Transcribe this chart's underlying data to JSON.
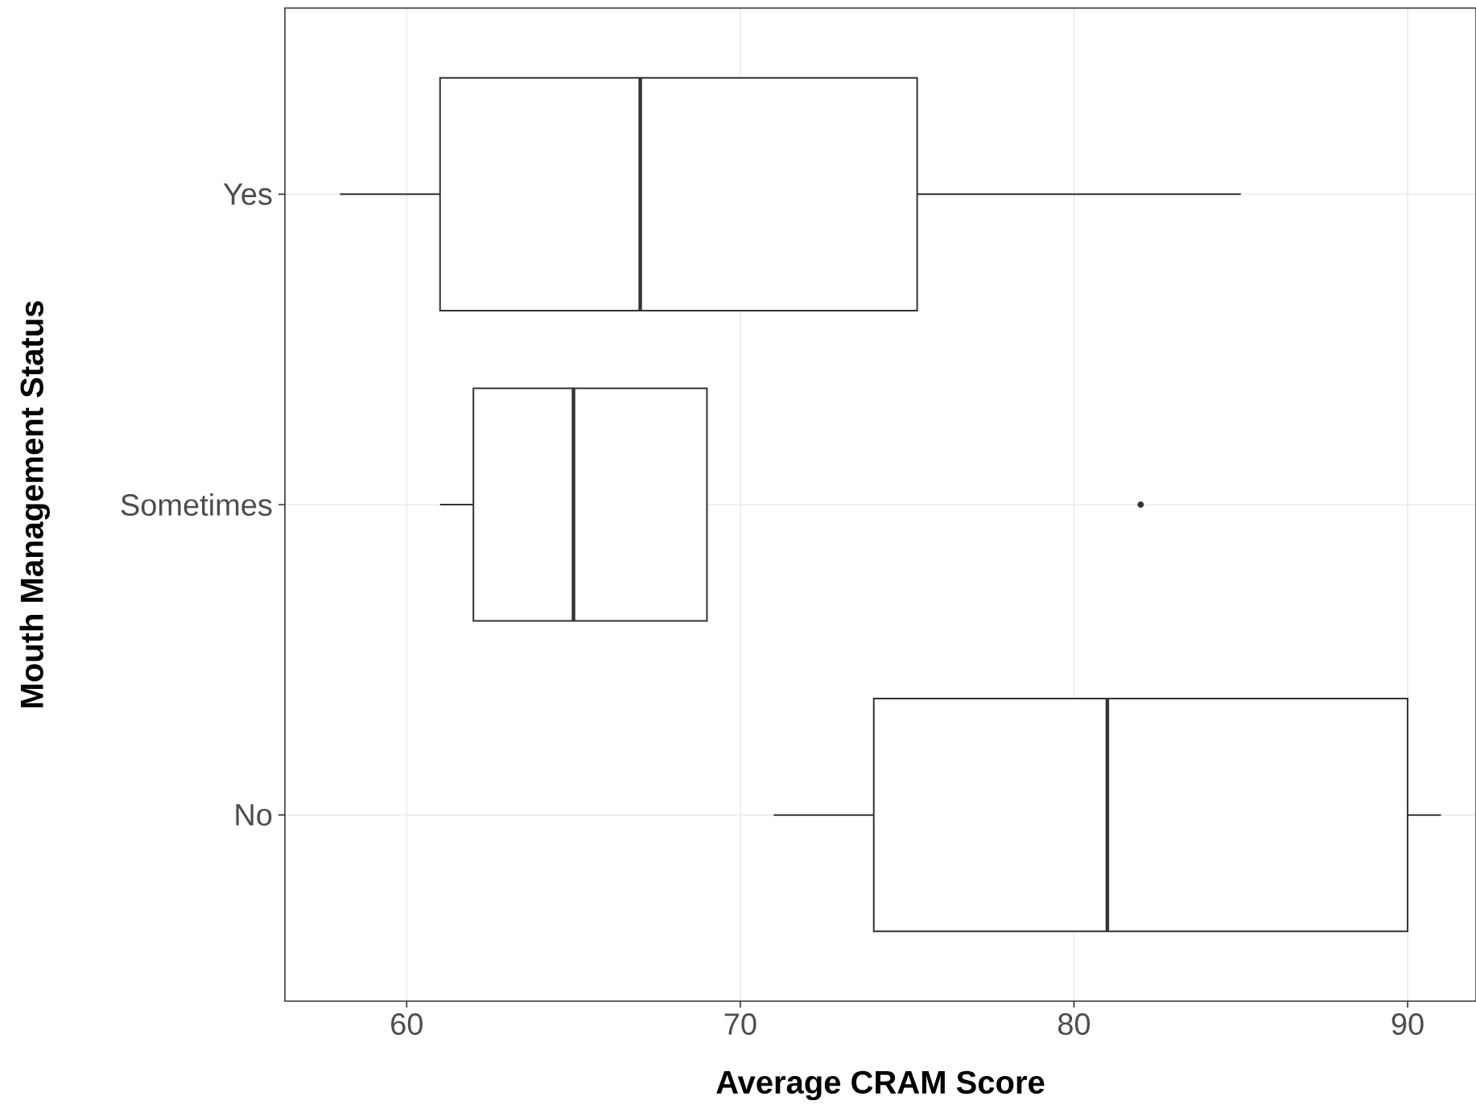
{
  "chart_data": {
    "type": "box",
    "orientation": "horizontal",
    "xlabel": "Average CRAM Score",
    "ylabel": "Mouth Management Status",
    "categories": [
      "Yes",
      "Sometimes",
      "No"
    ],
    "boxes": [
      {
        "low": 58,
        "q1": 61,
        "median": 67,
        "q3": 75.3,
        "high": 85
      },
      {
        "low": 61,
        "q1": 62,
        "median": 65,
        "q3": 69,
        "high": 69,
        "outliers": [
          82
        ]
      },
      {
        "low": 71,
        "q1": 74,
        "median": 81,
        "q3": 90,
        "high": 91
      }
    ],
    "color": "#333333",
    "xlim": [
      56.35,
      92.05
    ],
    "xticks": [
      60,
      70,
      80,
      90
    ],
    "grid": true
  }
}
